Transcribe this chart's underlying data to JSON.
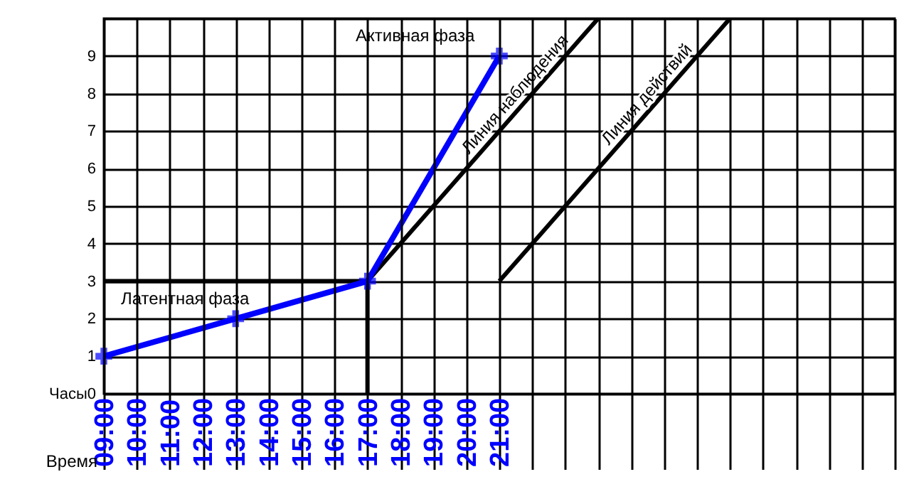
{
  "chart_data": {
    "type": "line",
    "xlabel": "Время",
    "x": [
      9,
      13,
      17,
      21
    ],
    "xlim": [
      9,
      33
    ],
    "xticks": [
      {
        "value": 9,
        "label": "09:00"
      },
      {
        "value": 10,
        "label": "10:00"
      },
      {
        "value": 11,
        "label": "11:00"
      },
      {
        "value": 12,
        "label": "12:00"
      },
      {
        "value": 13,
        "label": "13:00"
      },
      {
        "value": 14,
        "label": "14:00"
      },
      {
        "value": 15,
        "label": "15:00"
      },
      {
        "value": 16,
        "label": "16:00"
      },
      {
        "value": 17,
        "label": "17:00"
      },
      {
        "value": 18,
        "label": "18:00"
      },
      {
        "value": 19,
        "label": "19:00"
      },
      {
        "value": 20,
        "label": "20:00"
      },
      {
        "value": 21,
        "label": "21:00"
      },
      {
        "value": 22,
        "label": null
      },
      {
        "value": 23,
        "label": null
      },
      {
        "value": 24,
        "label": null
      },
      {
        "value": 25,
        "label": null
      },
      {
        "value": 26,
        "label": null
      },
      {
        "value": 27,
        "label": null
      },
      {
        "value": 28,
        "label": null
      },
      {
        "value": 29,
        "label": null
      },
      {
        "value": 30,
        "label": null
      },
      {
        "value": 31,
        "label": null
      },
      {
        "value": 32,
        "label": null
      },
      {
        "value": 33,
        "label": null
      }
    ],
    "ylim": [
      0,
      10
    ],
    "yticks": [
      {
        "value": 0,
        "label": "Часы0"
      },
      1,
      2,
      3,
      4,
      5,
      6,
      7,
      8,
      9,
      {
        "value": 10,
        "label": null
      }
    ],
    "series": [
      {
        "color": "#0000ff",
        "values": [
          1,
          2,
          3,
          9
        ],
        "marker": "cross"
      },
      {
        "x": [
          9,
          17,
          17
        ],
        "values": [
          3,
          3,
          0
        ],
        "color": "#000000",
        "marker": "none"
      },
      {
        "name": "Линия наблюдения",
        "x": [
          17,
          24
        ],
        "values": [
          3,
          10
        ],
        "color": "#000000",
        "marker": "none"
      },
      {
        "name": "Линия действий",
        "x": [
          21,
          28
        ],
        "values": [
          3,
          10
        ],
        "color": "#000000",
        "marker": "none"
      }
    ],
    "annotations": [
      "Латентная фаза",
      "Активная фаза"
    ],
    "grid": true,
    "line_style": "solid"
  }
}
